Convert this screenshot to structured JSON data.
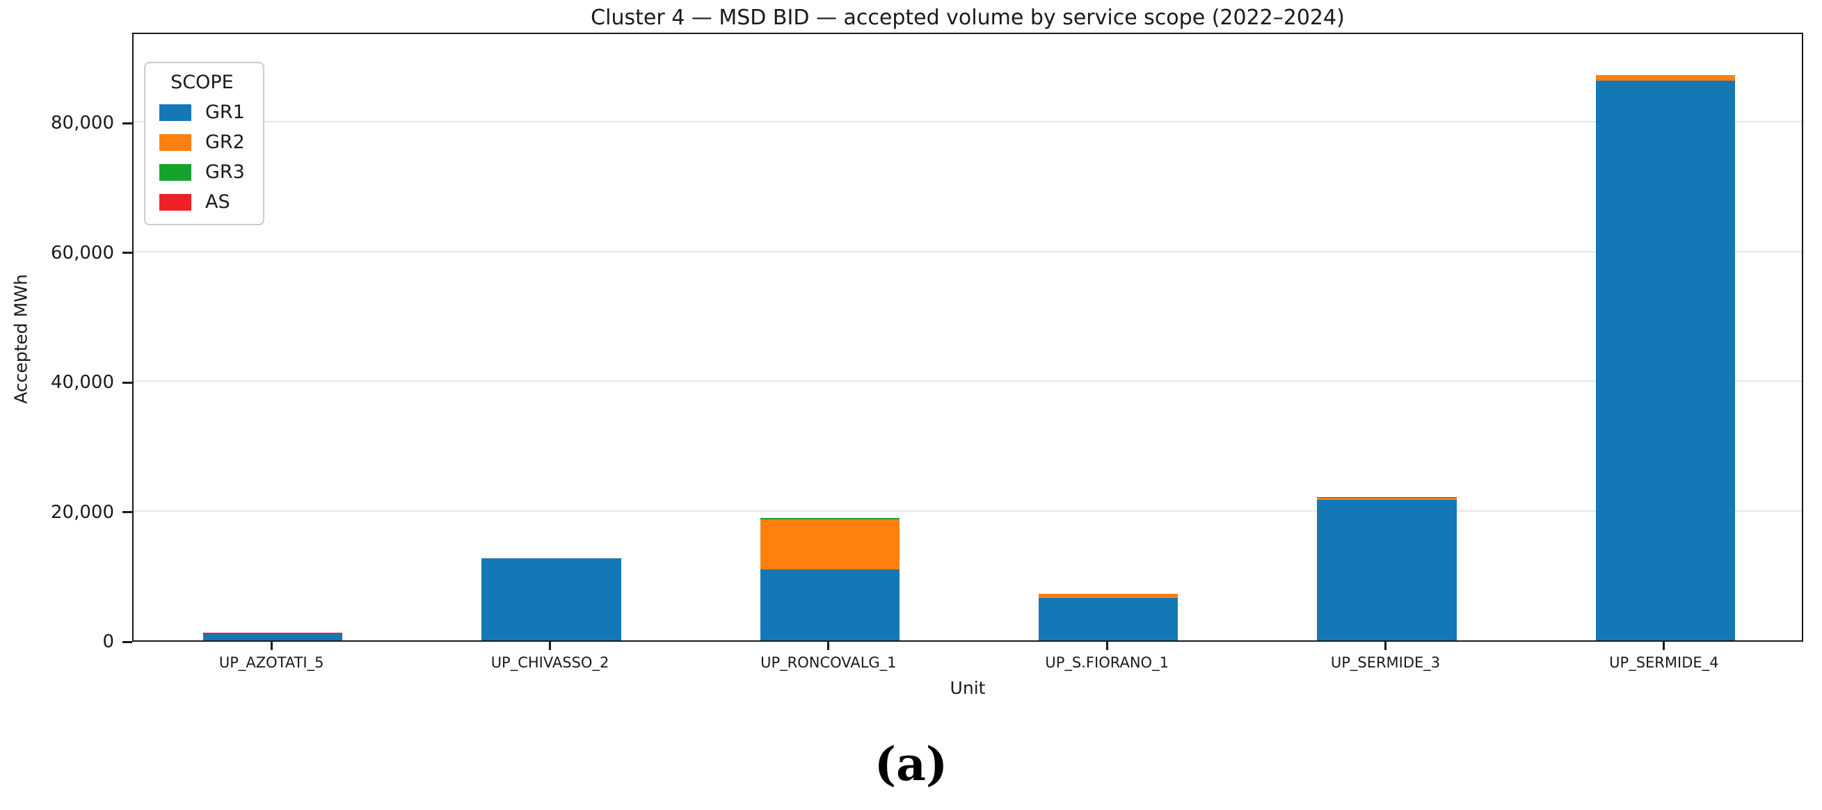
{
  "figure": {
    "caption": "(a)"
  },
  "chart_data": {
    "type": "bar",
    "stacked": true,
    "title": "Cluster 4 — MSD BID — accepted volume by service scope (2022–2024)",
    "xlabel": "Unit",
    "ylabel": "Accepted MWh",
    "categories": [
      "UP_AZOTATI_5",
      "UP_CHIVASSO_2",
      "UP_RONCOVALG_1",
      "UP_S.FIORANO_1",
      "UP_SERMIDE_3",
      "UP_SERMIDE_4"
    ],
    "series": [
      {
        "name": "GR1",
        "color": "#1478b6",
        "values": [
          1000,
          12700,
          11000,
          6500,
          21700,
          86400
        ]
      },
      {
        "name": "GR2",
        "color": "#ff800e",
        "values": [
          0,
          0,
          7700,
          700,
          250,
          800
        ]
      },
      {
        "name": "GR3",
        "color": "#14a32b",
        "values": [
          0,
          0,
          200,
          0,
          0,
          0
        ]
      },
      {
        "name": "AS",
        "color": "#ee2125",
        "values": [
          220,
          0,
          0,
          0,
          180,
          0
        ]
      }
    ],
    "totals": [
      1220,
      12700,
      18900,
      7200,
      22130,
      87200
    ],
    "legend": {
      "title": "SCOPE",
      "position": "upper-left"
    },
    "ylim": [
      0,
      94000
    ],
    "yticks": [
      0,
      20000,
      40000,
      60000,
      80000
    ],
    "ytick_labels": [
      "0",
      "20,000",
      "40,000",
      "60,000",
      "80,000"
    ],
    "grid": "horizontal",
    "bar_width_fraction": 0.5
  }
}
